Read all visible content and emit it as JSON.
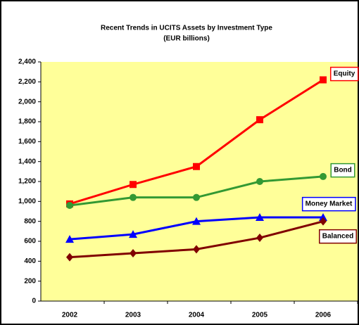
{
  "chart_data": {
    "type": "line",
    "title": "Recent Trends in UCITS Assets by Investment Type",
    "subtitle": "(EUR billions)",
    "categories": [
      "2002",
      "2003",
      "2004",
      "2005",
      "2006"
    ],
    "series": [
      {
        "name": "Equity",
        "color": "#ff0000",
        "marker": "square",
        "values": [
          975,
          1170,
          1350,
          1820,
          2220
        ]
      },
      {
        "name": "Bond",
        "color": "#339933",
        "marker": "circle",
        "values": [
          960,
          1040,
          1040,
          1200,
          1250
        ]
      },
      {
        "name": "Money Market",
        "color": "#0000ff",
        "marker": "triangle",
        "values": [
          620,
          670,
          800,
          840,
          840
        ]
      },
      {
        "name": "Balanced",
        "color": "#800000",
        "marker": "diamond",
        "values": [
          440,
          480,
          520,
          635,
          800
        ]
      }
    ],
    "ylim": [
      0,
      2400
    ],
    "yticks": [
      0,
      200,
      400,
      600,
      800,
      {
        "value": 1000,
        "label": "1,000"
      },
      {
        "value": 1200,
        "label": "1,200"
      },
      {
        "value": 1400,
        "label": "1,400"
      },
      {
        "value": 1600,
        "label": "1,600"
      },
      {
        "value": 1800,
        "label": "1,800"
      },
      {
        "value": 2000,
        "label": "2,000"
      },
      {
        "value": 2200,
        "label": "2,200"
      },
      {
        "value": 2400,
        "label": "2,400"
      }
    ],
    "grid": false,
    "background": "#ffff99"
  }
}
